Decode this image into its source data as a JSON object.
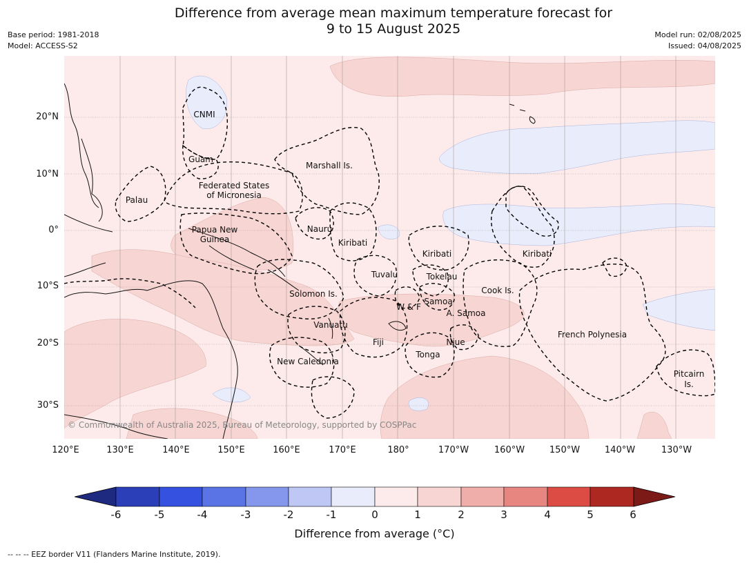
{
  "title": {
    "line1": "Difference from average mean maximum temperature forecast for",
    "line2": "9 to 15 August 2025"
  },
  "meta": {
    "base_period": "Base period: 1981-2018",
    "model": "Model: ACCESS-S2",
    "model_run": "Model run: 02/08/2025",
    "issued": "Issued: 04/08/2025"
  },
  "map": {
    "lon_ticks": [
      "120°E",
      "130°E",
      "140°E",
      "150°E",
      "160°E",
      "170°E",
      "180°",
      "170°W",
      "160°W",
      "150°W",
      "140°W",
      "130°W"
    ],
    "lat_ticks": [
      "20°N",
      "10°N",
      "0°",
      "10°S",
      "20°S",
      "30°S"
    ],
    "region_labels": [
      "CNMI",
      "Guam",
      "Marshall Is.",
      "Federated States",
      "of Micronesia",
      "Palau",
      "Nauru",
      "Papua New",
      "Guinea",
      "Kiribati",
      "Kiribati",
      "Kiribati",
      "Tuvalu",
      "Tokelau",
      "Cook Is.",
      "Solomon Is.",
      "W & F",
      "Samoa",
      "A. Samoa",
      "Vanuatu",
      "Fiji",
      "Niue",
      "Tonga",
      "French Polynesia",
      "New Caledonia",
      "Pitcairn",
      "Is."
    ],
    "copyright": "© Commonwealth of Australia 2025, Bureau of Meteorology, supported by COSPPac",
    "colors": {
      "background": "#fcebea",
      "warm_1_2": "#f7d5d2",
      "cool_0_-1": "#e8ecfb",
      "grid": "#a89a98"
    }
  },
  "colorbar": {
    "ticks": [
      "-6",
      "-5",
      "-4",
      "-3",
      "-2",
      "-1",
      "0",
      "1",
      "2",
      "3",
      "4",
      "5",
      "6"
    ],
    "colors": [
      "#1d2a80",
      "#2a3fb8",
      "#3451e0",
      "#5a74e6",
      "#8497ec",
      "#bfc8f4",
      "#e8ecfb",
      "#fcebea",
      "#f7d5d2",
      "#efaea9",
      "#e78680",
      "#dc4b44",
      "#ad2820",
      "#7b1a17"
    ],
    "label": "Difference from average (°C)"
  },
  "footer": "-- -- -- EEZ border V11 (Flanders Marine Institute, 2019)."
}
